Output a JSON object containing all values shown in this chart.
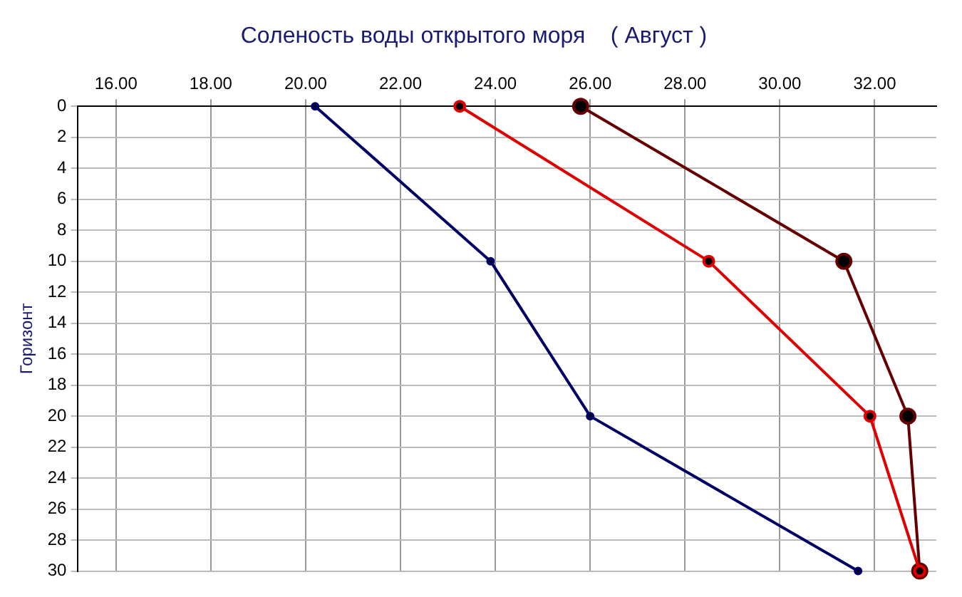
{
  "chart_data": {
    "type": "line",
    "title": "Соленость воды открытого моря    ( Август )",
    "ylabel": "Горизонт",
    "xlim": [
      15.2,
      33.3
    ],
    "xticks": [
      {
        "value": 16,
        "label": "16.00"
      },
      {
        "value": 18,
        "label": "18.00"
      },
      {
        "value": 20,
        "label": "20.00"
      },
      {
        "value": 22,
        "label": "22.00"
      },
      {
        "value": 24,
        "label": "24.00"
      },
      {
        "value": 26,
        "label": "26.00"
      },
      {
        "value": 28,
        "label": "28.00"
      },
      {
        "value": 30,
        "label": "30.00"
      },
      {
        "value": 32,
        "label": "32.00"
      }
    ],
    "ylim": [
      30,
      0
    ],
    "yticks": [
      0,
      2,
      4,
      6,
      8,
      10,
      12,
      14,
      16,
      18,
      20,
      22,
      24,
      26,
      28,
      30
    ],
    "grid": true,
    "legend": false,
    "marker": "circle",
    "line_style": "solid",
    "series": [
      {
        "color": "#000066",
        "x": [
          20.2,
          23.9,
          26.0,
          31.65
        ],
        "values": [
          0,
          10,
          20,
          30
        ]
      },
      {
        "color": "#e00000",
        "x": [
          23.25,
          28.5,
          31.9,
          32.95
        ],
        "values": [
          0,
          10,
          20,
          30
        ]
      },
      {
        "color": "#660000",
        "x": [
          25.8,
          31.35,
          32.7,
          32.95
        ],
        "values": [
          0,
          10,
          20,
          30
        ]
      }
    ]
  }
}
